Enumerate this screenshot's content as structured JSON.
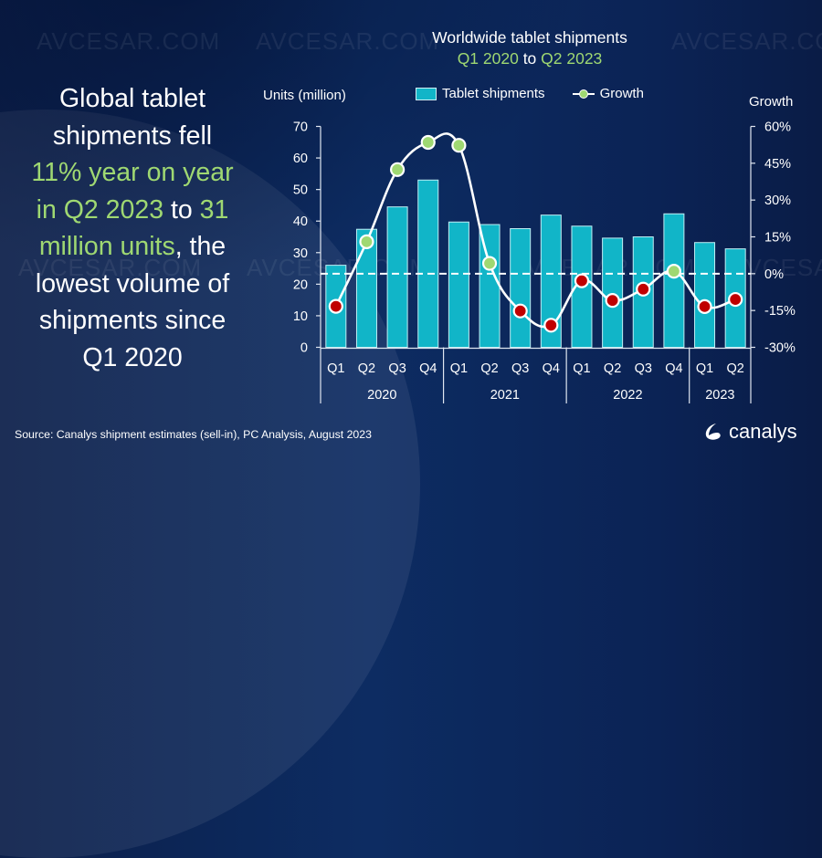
{
  "headline": {
    "line1": "Global tablet",
    "line2": "shipments fell",
    "line3_hl": "11% year on year",
    "line4_hl": "in Q2 2023",
    "line4_rest": " to ",
    "line4_hl2": "31",
    "line5_hl": "million units",
    "line5_rest": ", the",
    "line6": "lowest volume of",
    "line7": "shipments since",
    "line8": "Q1 2020"
  },
  "watermark_text": "AVCESAR.COM",
  "source": "Source: Canalys shipment estimates (sell-in), PC Analysis, August 2023",
  "logo_text": "canalys",
  "colors": {
    "bar": "#11b5c8",
    "positive": "#9fd872",
    "negative": "#c00000",
    "line": "#ffffff",
    "highlight": "#9fd872"
  },
  "chart_data": {
    "type": "bar",
    "title": "Worldwide tablet shipments",
    "subtitle_parts": [
      "Q1 2020",
      " to ",
      "Q2 2023"
    ],
    "ylabel": "Units (million)",
    "y2label": "Growth",
    "ylim": [
      0,
      70
    ],
    "yticks": [
      0,
      10,
      20,
      30,
      40,
      50,
      60,
      70
    ],
    "y2lim": [
      -30,
      60
    ],
    "y2ticks": [
      "-30%",
      "-15%",
      "0%",
      "15%",
      "30%",
      "45%",
      "60%"
    ],
    "y2tick_values": [
      -30,
      -15,
      0,
      15,
      30,
      45,
      60
    ],
    "legend": [
      "Tablet shipments",
      "Growth"
    ],
    "legend_position": "top-center",
    "categories": [
      "Q1",
      "Q2",
      "Q3",
      "Q4",
      "Q1",
      "Q2",
      "Q3",
      "Q4",
      "Q1",
      "Q2",
      "Q3",
      "Q4",
      "Q1",
      "Q2"
    ],
    "years": [
      {
        "label": "2020",
        "count": 4
      },
      {
        "label": "2021",
        "count": 4
      },
      {
        "label": "2022",
        "count": 4
      },
      {
        "label": "2023",
        "count": 2
      }
    ],
    "series": [
      {
        "name": "Tablet shipments",
        "type": "bar",
        "axis": "left",
        "values": [
          26.0,
          37.4,
          44.5,
          53.0,
          39.7,
          38.9,
          37.6,
          41.9,
          38.4,
          34.6,
          35.0,
          42.3,
          33.2,
          31.2
        ]
      },
      {
        "name": "Growth",
        "type": "line",
        "axis": "right",
        "unit": "%",
        "values": [
          -13.3,
          13.0,
          42.4,
          53.5,
          52.3,
          4.2,
          -15.2,
          -21.0,
          -2.9,
          -10.9,
          -6.3,
          1.0,
          -13.4,
          -10.5
        ]
      }
    ],
    "grid": false,
    "zero_line": "dashed"
  }
}
